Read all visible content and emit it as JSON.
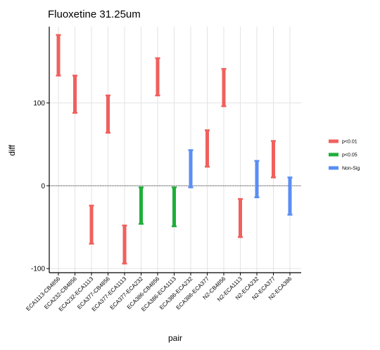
{
  "chart_data": {
    "type": "errorbar",
    "title": "Fluoxetine 31.25um",
    "xlabel": "pair",
    "ylabel": "diff",
    "ylim": [
      -105,
      192
    ],
    "yticks": [
      -100,
      0,
      100
    ],
    "grid": true,
    "reference_line": 0,
    "legend_position": "right",
    "categories": [
      "ECA1113-CB4856",
      "ECA232-CB4856",
      "ECA232-ECA1113",
      "ECA377-CB4856",
      "ECA377-ECA1113",
      "ECA377-ECA232",
      "ECA386-CB4856",
      "ECA386-ECA1113",
      "ECA386-ECA232",
      "ECA386-ECA377",
      "N2-CB4856",
      "N2-ECA1113",
      "N2-ECA232",
      "N2-ECA377",
      "N2-ECA386"
    ],
    "legend": [
      {
        "label": "p<0.01",
        "color": "#f0605d"
      },
      {
        "label": "p<0.05",
        "color": "#1fae3a"
      },
      {
        "label": "Non-Sig",
        "color": "#5a8ef5"
      }
    ],
    "points": [
      {
        "pair": "ECA1113-CB4856",
        "group": "p<0.01",
        "low": 133,
        "mid": 157,
        "high": 182
      },
      {
        "pair": "ECA232-CB4856",
        "group": "p<0.01",
        "low": 88,
        "mid": 111,
        "high": 133
      },
      {
        "pair": "ECA232-ECA1113",
        "group": "p<0.01",
        "low": -70,
        "mid": -47,
        "high": -24
      },
      {
        "pair": "ECA377-CB4856",
        "group": "p<0.01",
        "low": 64,
        "mid": 87,
        "high": 109
      },
      {
        "pair": "ECA377-ECA1113",
        "group": "p<0.01",
        "low": -94,
        "mid": -71,
        "high": -48
      },
      {
        "pair": "ECA377-ECA232",
        "group": "p<0.05",
        "low": -46,
        "mid": -24,
        "high": -2
      },
      {
        "pair": "ECA386-CB4856",
        "group": "p<0.01",
        "low": 109,
        "mid": 132,
        "high": 154
      },
      {
        "pair": "ECA386-ECA1113",
        "group": "p<0.05",
        "low": -49,
        "mid": -25,
        "high": -2
      },
      {
        "pair": "ECA386-ECA232",
        "group": "Non-Sig",
        "low": -2,
        "mid": 21,
        "high": 43
      },
      {
        "pair": "ECA386-ECA377",
        "group": "p<0.01",
        "low": 23,
        "mid": 45,
        "high": 67
      },
      {
        "pair": "N2-CB4856",
        "group": "p<0.01",
        "low": 96,
        "mid": 119,
        "high": 141
      },
      {
        "pair": "N2-ECA1113",
        "group": "p<0.01",
        "low": -62,
        "mid": -39,
        "high": -16
      },
      {
        "pair": "N2-ECA232",
        "group": "Non-Sig",
        "low": -14,
        "mid": 8,
        "high": 30
      },
      {
        "pair": "N2-ECA377",
        "group": "p<0.01",
        "low": 10,
        "mid": 32,
        "high": 54
      },
      {
        "pair": "N2-ECA386",
        "group": "Non-Sig",
        "low": -35,
        "mid": -12,
        "high": 10
      }
    ]
  }
}
